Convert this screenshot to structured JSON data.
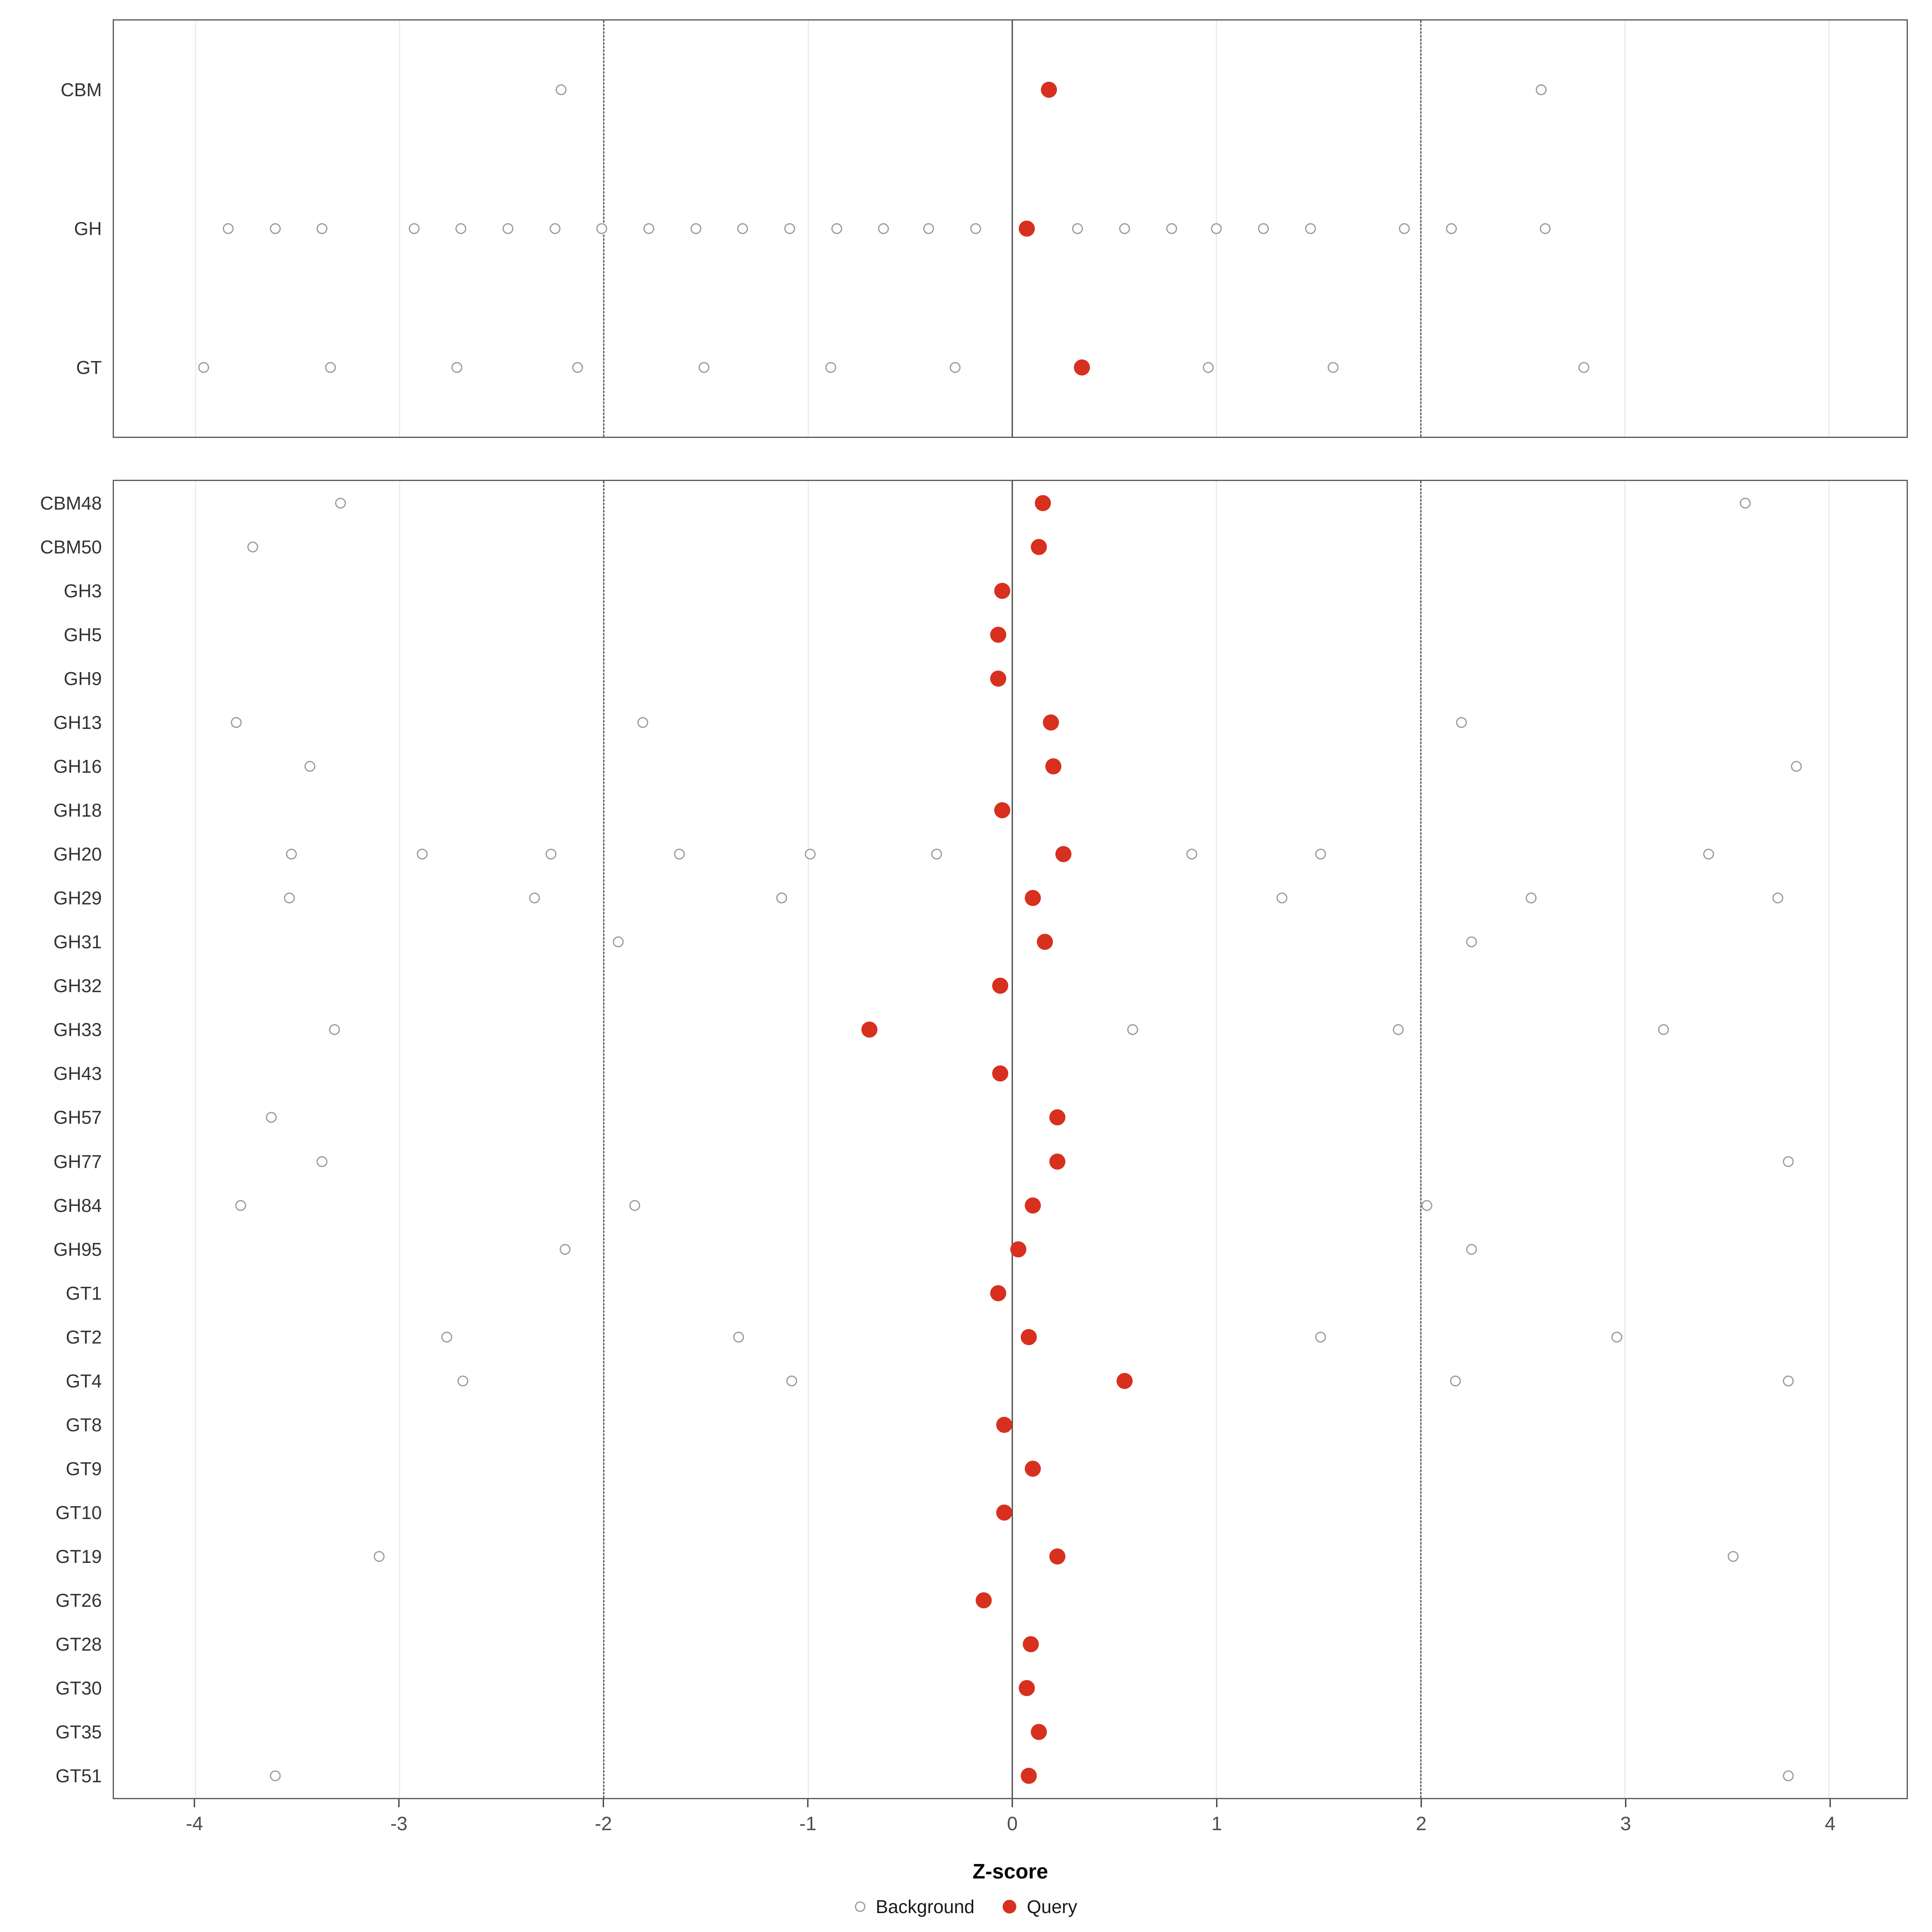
{
  "chart_data": {
    "type": "scatter",
    "title": "",
    "xlabel": "Z-score",
    "xlim": [
      -4.4,
      4.38
    ],
    "xticks": [
      -4,
      -3,
      -2,
      -1,
      0,
      1,
      2,
      3,
      4
    ],
    "xtick_labels": [
      "-4",
      "-3",
      "-2",
      "-1",
      "0",
      "1",
      "2",
      "3",
      "4"
    ],
    "vlines": {
      "solid": [
        0
      ],
      "dashed": [
        -2,
        2
      ]
    },
    "colors": {
      "query": "#d7301f",
      "background_stroke": "#9a9a9a",
      "gridline": "#e4e4e4",
      "panel_border": "#5a5a5a"
    },
    "legend": [
      {
        "label": "Background",
        "style": "open"
      },
      {
        "label": "Query",
        "style": "filled"
      }
    ],
    "panels": [
      {
        "name": "family-class-panel",
        "rows": [
          {
            "label": "CBM",
            "background": [
              -2.21,
              2.59
            ],
            "query": 0.18
          },
          {
            "label": "GH",
            "background": [
              -3.84,
              -3.61,
              -3.38,
              -2.93,
              -2.7,
              -2.47,
              -2.24,
              -2.01,
              -1.78,
              -1.55,
              -1.32,
              -1.09,
              -0.86,
              -0.63,
              -0.41,
              -0.18,
              0.32,
              0.55,
              0.78,
              1.0,
              1.23,
              1.46,
              1.92,
              2.15,
              2.61
            ],
            "query": 0.07
          },
          {
            "label": "GT",
            "background": [
              -3.96,
              -3.34,
              -2.72,
              -2.13,
              -1.51,
              -0.89,
              -0.28,
              0.96,
              1.57,
              2.8
            ],
            "query": 0.34
          }
        ]
      },
      {
        "name": "family-detail-panel",
        "rows": [
          {
            "label": "CBM48",
            "background": [
              -3.29,
              3.59
            ],
            "query": 0.15
          },
          {
            "label": "CBM50",
            "background": [
              -3.72
            ],
            "query": 0.13
          },
          {
            "label": "GH3",
            "background": [],
            "query": -0.05
          },
          {
            "label": "GH5",
            "background": [],
            "query": -0.07
          },
          {
            "label": "GH9",
            "background": [],
            "query": -0.07
          },
          {
            "label": "GH13",
            "background": [
              -3.8,
              -1.81,
              2.2
            ],
            "query": 0.19
          },
          {
            "label": "GH16",
            "background": [
              -3.44,
              3.84
            ],
            "query": 0.2
          },
          {
            "label": "GH18",
            "background": [],
            "query": -0.05
          },
          {
            "label": "GH20",
            "background": [
              -3.53,
              -2.89,
              -2.26,
              -1.63,
              -0.99,
              -0.37,
              0.88,
              1.51,
              3.41
            ],
            "query": 0.25
          },
          {
            "label": "GH29",
            "background": [
              -3.54,
              -2.34,
              -1.13,
              1.32,
              2.54,
              3.75
            ],
            "query": 0.1
          },
          {
            "label": "GH31",
            "background": [
              -1.93,
              2.25
            ],
            "query": 0.16
          },
          {
            "label": "GH32",
            "background": [],
            "query": -0.06
          },
          {
            "label": "GH33",
            "background": [
              -3.32,
              0.59,
              1.89,
              3.19
            ],
            "query": -0.7
          },
          {
            "label": "GH43",
            "background": [],
            "query": -0.06
          },
          {
            "label": "GH57",
            "background": [
              -3.63
            ],
            "query": 0.22
          },
          {
            "label": "GH77",
            "background": [
              -3.38,
              3.8
            ],
            "query": 0.22
          },
          {
            "label": "GH84",
            "background": [
              -3.78,
              -1.85,
              2.03
            ],
            "query": 0.1
          },
          {
            "label": "GH95",
            "background": [
              -2.19,
              2.25
            ],
            "query": 0.03
          },
          {
            "label": "GT1",
            "background": [],
            "query": -0.07
          },
          {
            "label": "GT2",
            "background": [
              -2.77,
              -1.34,
              1.51,
              2.96
            ],
            "query": 0.08
          },
          {
            "label": "GT4",
            "background": [
              -2.69,
              -1.08,
              2.17,
              3.8
            ],
            "query": 0.55
          },
          {
            "label": "GT8",
            "background": [],
            "query": -0.04
          },
          {
            "label": "GT9",
            "background": [],
            "query": 0.1
          },
          {
            "label": "GT10",
            "background": [],
            "query": -0.04
          },
          {
            "label": "GT19",
            "background": [
              -3.1,
              3.53
            ],
            "query": 0.22
          },
          {
            "label": "GT26",
            "background": [],
            "query": -0.14
          },
          {
            "label": "GT28",
            "background": [],
            "query": 0.09
          },
          {
            "label": "GT30",
            "background": [],
            "query": 0.07
          },
          {
            "label": "GT35",
            "background": [],
            "query": 0.13
          },
          {
            "label": "GT51",
            "background": [
              -3.61,
              3.8
            ],
            "query": 0.08
          }
        ]
      }
    ]
  }
}
